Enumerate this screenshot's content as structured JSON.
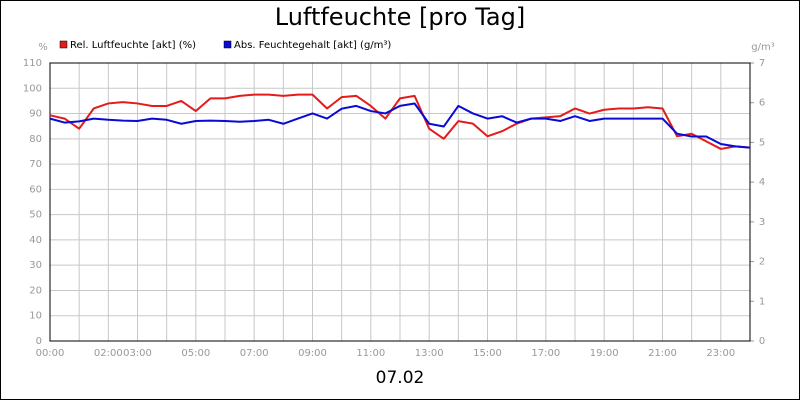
{
  "chart_data": {
    "type": "line",
    "title": "Luftfeuchte [pro Tag]",
    "xlabel": "07.02",
    "ylabel": "%",
    "y2label": "g/m³",
    "x": [
      0,
      0.5,
      1,
      1.5,
      2,
      2.5,
      3,
      3.5,
      4,
      4.5,
      5,
      5.5,
      6,
      6.5,
      7,
      7.5,
      8,
      8.5,
      9,
      9.5,
      10,
      10.5,
      11,
      11.5,
      12,
      12.5,
      13,
      13.5,
      14,
      14.5,
      15,
      15.5,
      16,
      16.5,
      17,
      17.5,
      18,
      18.5,
      19,
      19.5,
      20,
      20.5,
      21,
      21.5,
      22,
      22.5,
      23,
      23.5,
      24
    ],
    "series": [
      {
        "name": "Rel. Luftfeuchte [akt] (%)",
        "color": "#e31b1b",
        "values": [
          89.3,
          88,
          84,
          92,
          94,
          94.5,
          94,
          93,
          93,
          95,
          91,
          96,
          96,
          97,
          97.5,
          97.5,
          97,
          97.5,
          97.5,
          92,
          96.5,
          97,
          93,
          88,
          96,
          97,
          84,
          80,
          87,
          86,
          81,
          83,
          86,
          88,
          88.5,
          89,
          92,
          90,
          91.5,
          92,
          92,
          92.5,
          92,
          81,
          82,
          79,
          76,
          77,
          76.5
        ]
      },
      {
        "name": "Abs. Feuchtegehalt [akt] (g/m³)",
        "color": "#0a0ad6",
        "axis": "y2",
        "values": [
          5.6,
          5.5,
          5.53,
          5.6,
          5.57,
          5.55,
          5.54,
          5.6,
          5.57,
          5.47,
          5.54,
          5.55,
          5.54,
          5.52,
          5.54,
          5.57,
          5.47,
          5.6,
          5.73,
          5.6,
          5.85,
          5.92,
          5.79,
          5.73,
          5.92,
          5.98,
          5.47,
          5.4,
          5.92,
          5.73,
          5.6,
          5.66,
          5.5,
          5.6,
          5.6,
          5.54,
          5.66,
          5.54,
          5.6,
          5.6,
          5.6,
          5.6,
          5.6,
          5.22,
          5.15,
          5.15,
          4.96,
          4.9,
          4.87
        ]
      }
    ],
    "xlim": [
      0,
      24
    ],
    "xticks": [
      {
        "value": 0,
        "label": "00:00"
      },
      {
        "value": 1,
        "label": null
      },
      {
        "value": 2,
        "label": "02:00"
      },
      {
        "value": 3,
        "label": "03:00"
      },
      {
        "value": 4,
        "label": null
      },
      {
        "value": 5,
        "label": "05:00"
      },
      {
        "value": 6,
        "label": null
      },
      {
        "value": 7,
        "label": "07:00"
      },
      {
        "value": 8,
        "label": null
      },
      {
        "value": 9,
        "label": "09:00"
      },
      {
        "value": 10,
        "label": null
      },
      {
        "value": 11,
        "label": "11:00"
      },
      {
        "value": 12,
        "label": null
      },
      {
        "value": 13,
        "label": "13:00"
      },
      {
        "value": 14,
        "label": null
      },
      {
        "value": 15,
        "label": "15:00"
      },
      {
        "value": 16,
        "label": null
      },
      {
        "value": 17,
        "label": "17:00"
      },
      {
        "value": 18,
        "label": null
      },
      {
        "value": 19,
        "label": "19:00"
      },
      {
        "value": 20,
        "label": null
      },
      {
        "value": 21,
        "label": "21:00"
      },
      {
        "value": 22,
        "label": null
      },
      {
        "value": 23,
        "label": "23:00"
      },
      {
        "value": 24,
        "label": null
      }
    ],
    "ylim": [
      0,
      110
    ],
    "yticks": [
      0,
      10,
      20,
      30,
      40,
      50,
      60,
      70,
      80,
      90,
      100,
      110
    ],
    "y2lim": [
      0,
      7
    ],
    "y2ticks": [
      0,
      1,
      2,
      3,
      4,
      5,
      6,
      7
    ],
    "grid": true
  }
}
